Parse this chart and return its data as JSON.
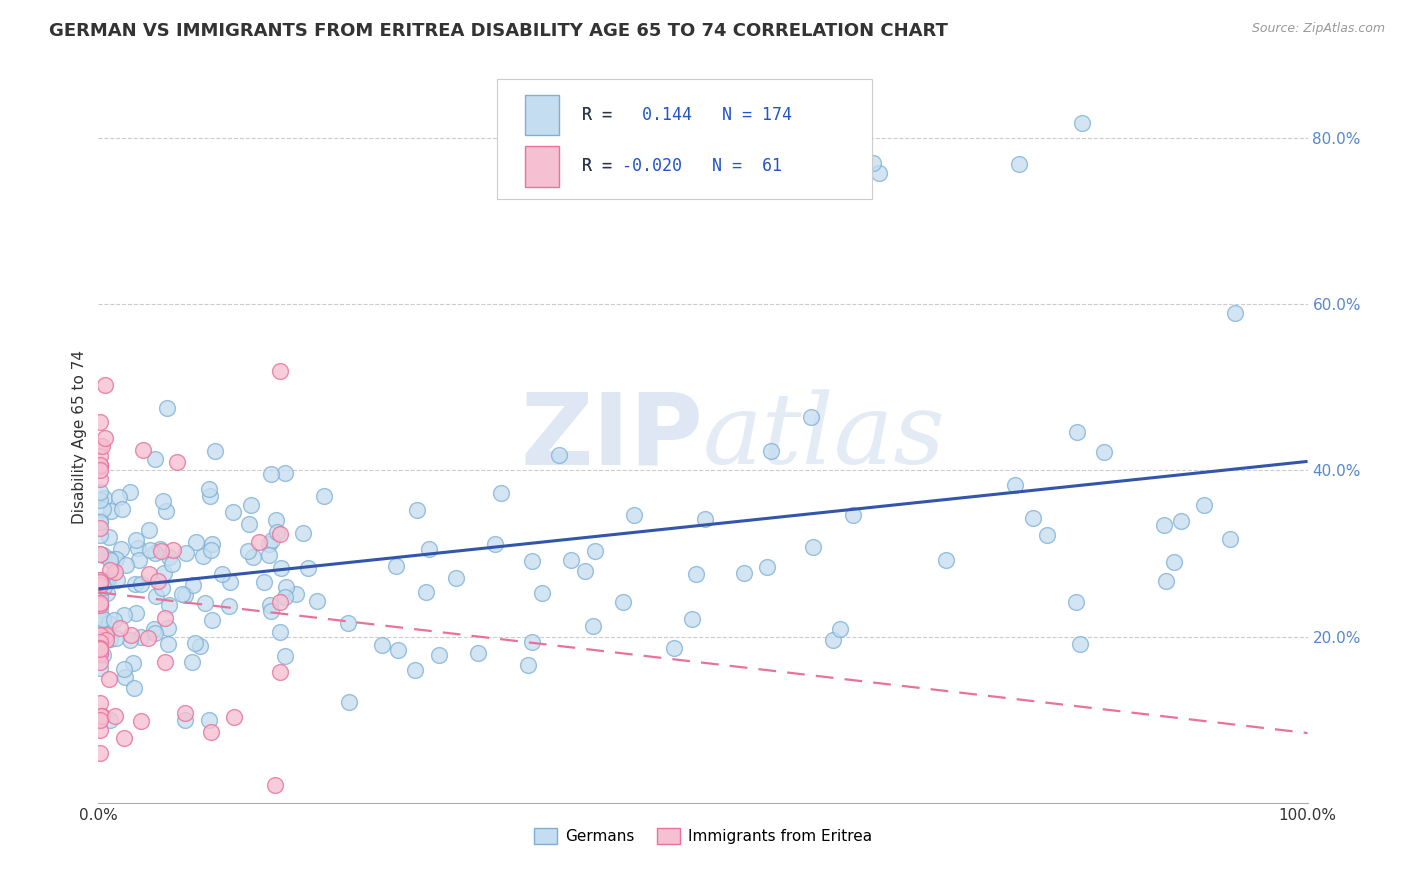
{
  "title": "GERMAN VS IMMIGRANTS FROM ERITREA DISABILITY AGE 65 TO 74 CORRELATION CHART",
  "source": "Source: ZipAtlas.com",
  "ylabel": "Disability Age 65 to 74",
  "xlim": [
    0,
    1.0
  ],
  "ylim": [
    0,
    0.88
  ],
  "y_ticks": [
    0.2,
    0.4,
    0.6,
    0.8
  ],
  "y_tick_labels": [
    "20.0%",
    "40.0%",
    "60.0%",
    "80.0%"
  ],
  "german_color": "#7bafd4",
  "german_color_fill": "#c5ddf0",
  "eritrea_color": "#e8729a",
  "eritrea_color_fill": "#f5c0d2",
  "r_german": 0.144,
  "n_german": 174,
  "r_eritrea": -0.02,
  "n_eritrea": 61,
  "watermark_zip": "ZIP",
  "watermark_atlas": "atlas",
  "background_color": "#ffffff",
  "grid_color": "#cccccc",
  "title_fontsize": 13,
  "axis_label_fontsize": 11,
  "tick_fontsize": 11,
  "legend_label_german": "Germans",
  "legend_label_eritrea": "Immigrants from Eritrea",
  "regression_blue": "#3355aa",
  "regression_pink": "#e8729a"
}
